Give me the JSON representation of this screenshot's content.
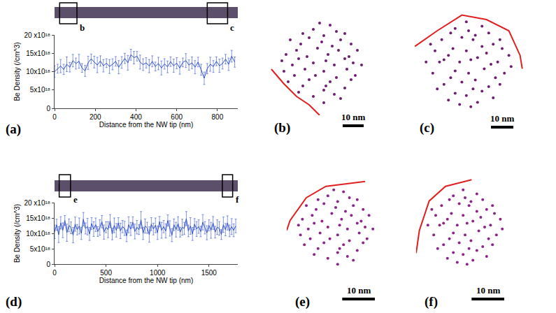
{
  "chart_data": [
    {
      "panel": "(a)",
      "type": "line",
      "color": "#3050d0",
      "grid": false,
      "x": [
        0,
        15,
        30,
        45,
        60,
        75,
        90,
        105,
        120,
        135,
        150,
        165,
        180,
        195,
        210,
        225,
        240,
        255,
        270,
        285,
        300,
        315,
        330,
        345,
        360,
        375,
        390,
        405,
        420,
        435,
        450,
        465,
        480,
        495,
        510,
        525,
        540,
        555,
        570,
        585,
        600,
        615,
        630,
        645,
        660,
        675,
        690,
        705,
        720,
        735,
        750,
        765,
        780,
        795,
        810,
        825,
        840,
        855,
        870,
        885
      ],
      "values": [
        1e+19,
        1.08e+19,
        1.15e+19,
        1.06e+19,
        1.2e+19,
        1.12e+19,
        1.3e+19,
        1.22e+19,
        1.28e+19,
        1.1e+19,
        1.02e+19,
        1.24e+19,
        1.35e+19,
        1.26e+19,
        1.18e+19,
        1.29e+19,
        1.16e+19,
        1.23e+19,
        1.14e+19,
        1.2e+19,
        1.28e+19,
        1.12e+19,
        1.25e+19,
        1.36e+19,
        1.24e+19,
        1.46e+19,
        1.38e+19,
        1.42e+19,
        1.26e+19,
        1.19e+19,
        1.24e+19,
        1.15e+19,
        1.28e+19,
        1.14e+19,
        1.22e+19,
        1.1e+19,
        1.21e+19,
        1.13e+19,
        1.27e+19,
        1.16e+19,
        1.23e+19,
        1.1e+19,
        1.25e+19,
        1.3e+19,
        1.18e+19,
        1.24e+19,
        1.12e+19,
        1.26e+19,
        1.05e+19,
        8.2e+18,
        1.08e+19,
        1.2e+19,
        1.14e+19,
        1.28e+19,
        1.16e+19,
        1.22e+19,
        1.34e+19,
        1.2e+19,
        1.42e+19,
        1.26e+19
      ],
      "errors": [
        1.6e+18,
        1.2e+18,
        1.8e+18,
        1.4e+18,
        2e+18,
        1.3e+18,
        1.7e+18,
        1.5e+18,
        1.9e+18,
        1.2e+18,
        1.5e+18,
        1.8e+18,
        1.3e+18,
        1.6e+18,
        2.1e+18,
        1.4e+18,
        1.7e+18,
        1.2e+18,
        1.9e+18,
        1.5e+18,
        1.3e+18,
        1.8e+18,
        1.6e+18,
        1.4e+18,
        2e+18,
        1.5e+18,
        1.7e+18,
        1.3e+18,
        1.9e+18,
        1.6e+18,
        1.4e+18,
        1.8e+18,
        1.5e+18,
        1.2e+18,
        1.7e+18,
        1.9e+18,
        1.4e+18,
        1.6e+18,
        1.3e+18,
        1.8e+18,
        1.5e+18,
        1.7e+18,
        1.2e+18,
        1.9e+18,
        1.4e+18,
        1.6e+18,
        1.8e+18,
        1.3e+18,
        1.5e+18,
        1.7e+18,
        1.4e+18,
        1.9e+18,
        1.6e+18,
        1.2e+18,
        1.8e+18,
        1.5e+18,
        1.3e+18,
        1.7e+18,
        1.6e+18,
        1.4e+18
      ],
      "xlim": [
        0,
        900
      ],
      "xticks": [
        0,
        200,
        400,
        600,
        800
      ],
      "ylim": [
        0,
        2e+19
      ],
      "yticks": [
        0,
        {
          "value": 5e+18,
          "label": "5x10¹⁸"
        },
        {
          "value": 1e+19,
          "label": "10x10¹⁸"
        },
        {
          "value": 1.5e+19,
          "label": "15x10¹⁸"
        },
        {
          "value": 2e+19,
          "label": "20 x10¹⁸"
        }
      ],
      "x_label": "Distance from the NW tip (nm)",
      "y_label": "Be Density (/cm^3)",
      "nanowire": {
        "boxes": [
          {
            "label": "b",
            "from": 25,
            "to": 110
          },
          {
            "label": "c",
            "from": 750,
            "to": 850
          }
        ]
      }
    },
    {
      "panel": "(b)",
      "type": "scatter",
      "color": "#6e1b72",
      "tick_labels": false,
      "x": [
        1,
        -11,
        -4,
        1,
        6,
        9,
        -16,
        -9,
        -6,
        2,
        4,
        11,
        14,
        -18,
        -13,
        -8,
        -3,
        1,
        7,
        12,
        16,
        -19,
        -14,
        -11,
        -4,
        2,
        6,
        11,
        15,
        19,
        -17,
        -12,
        -7,
        -2,
        3,
        8,
        13,
        17,
        -15,
        -10,
        -6,
        0,
        5,
        9,
        14,
        -9,
        -4,
        1,
        7,
        11,
        -1,
        4
      ],
      "y": [
        -19,
        -14,
        -16,
        -13,
        -15,
        -17,
        -9,
        -11,
        -8,
        -11,
        -9,
        -12,
        -8,
        -4,
        -6,
        -3,
        -6,
        -4,
        -7,
        -3,
        -6,
        1,
        -1,
        2,
        0,
        1,
        -1,
        2,
        0,
        -1,
        4,
        6,
        3,
        7,
        4,
        6,
        3,
        6,
        11,
        9,
        12,
        10,
        8,
        11,
        9,
        14,
        16,
        13,
        15,
        14,
        19,
        18
      ],
      "xlim": [
        -25,
        25
      ],
      "ylim": [
        -25,
        25
      ],
      "boundary": {
        "x": [
          -24,
          -18,
          -12,
          -6,
          -1
        ],
        "y": [
          -3,
          -10,
          -16,
          -20,
          -25
        ],
        "color": "#e02020"
      },
      "scale_bar": {
        "length": 10,
        "label": "10 nm"
      }
    },
    {
      "panel": "(c)",
      "type": "scatter",
      "color": "#6e1b72",
      "tick_labels": false,
      "x": [
        -19,
        -14,
        -16,
        -13,
        -15,
        -17,
        -9,
        -11,
        -8,
        -11,
        -9,
        -12,
        -8,
        -4,
        -6,
        -3,
        -6,
        -4,
        -7,
        -3,
        -6,
        1,
        -1,
        2,
        0,
        1,
        -1,
        2,
        0,
        -1,
        4,
        6,
        3,
        7,
        4,
        6,
        3,
        6,
        11,
        9,
        12,
        10,
        8,
        11,
        9,
        14,
        16,
        13,
        15,
        14,
        19,
        18
      ],
      "y": [
        1,
        -11,
        -4,
        1,
        6,
        9,
        -16,
        -9,
        -6,
        2,
        4,
        11,
        14,
        -18,
        -13,
        -8,
        -3,
        1,
        7,
        12,
        16,
        -19,
        -14,
        -11,
        -4,
        2,
        6,
        11,
        15,
        19,
        -17,
        -12,
        -7,
        -2,
        3,
        8,
        13,
        17,
        -15,
        -10,
        -6,
        0,
        5,
        9,
        14,
        -9,
        -4,
        1,
        7,
        11,
        -1,
        4
      ],
      "xlim": [
        -25,
        25
      ],
      "ylim": [
        -25,
        25
      ],
      "boundary": {
        "x": [
          -24,
          -14,
          -3,
          8,
          18,
          23,
          24
        ],
        "y": [
          8,
          15,
          22,
          20,
          15,
          4,
          -2
        ],
        "color": "#e02020"
      },
      "scale_bar": {
        "length": 10,
        "label": "10 nm"
      }
    },
    {
      "panel": "(d)",
      "type": "line",
      "color": "#3050d0",
      "grid": false,
      "x": [
        0,
        20,
        40,
        60,
        80,
        100,
        120,
        140,
        160,
        180,
        200,
        220,
        240,
        260,
        280,
        300,
        320,
        340,
        360,
        380,
        400,
        420,
        440,
        460,
        480,
        500,
        520,
        540,
        560,
        580,
        600,
        620,
        640,
        660,
        680,
        700,
        720,
        740,
        760,
        780,
        800,
        820,
        840,
        860,
        880,
        900,
        920,
        940,
        960,
        980,
        1000,
        1020,
        1040,
        1060,
        1080,
        1100,
        1120,
        1140,
        1160,
        1180,
        1200,
        1220,
        1240,
        1260,
        1280,
        1300,
        1320,
        1340,
        1360,
        1380,
        1400,
        1420,
        1440,
        1460,
        1480,
        1500,
        1520,
        1540,
        1560,
        1580,
        1600,
        1620,
        1640,
        1660,
        1680,
        1700,
        1720,
        1740,
        1760
      ],
      "values": [
        1.05e+19,
        1.28e+19,
        9.6e+18,
        1.34e+19,
        1.1e+19,
        1.42e+19,
        1.02e+19,
        1.26e+19,
        1.18e+19,
        9.4e+18,
        1.3e+19,
        1.12e+19,
        1.24e+19,
        1e+19,
        1.46e+19,
        1.16e+19,
        1.22e+19,
        9.8e+18,
        1.32e+19,
        1.14e+19,
        1.28e+19,
        1.06e+19,
        1.19e+19,
        1.38e+19,
        1.04e+19,
        1.2e+19,
        1.12e+19,
        1.4e+19,
        9.8e+18,
        1.26e+19,
        1.1e+19,
        1.34e+19,
        1.08e+19,
        1.22e+19,
        1.16e+19,
        9.2e+18,
        1.28e+19,
        1.14e+19,
        1.36e+19,
        1.06e+19,
        1.2e+19,
        1.12e+19,
        1.44e+19,
        1e+19,
        1.24e+19,
        1.18e+19,
        9.6e+18,
        1.3e+19,
        1.14e+19,
        1.26e+19,
        1.02e+19,
        1.38e+19,
        1.1e+19,
        1.22e+19,
        1.08e+19,
        1.42e+19,
        1.16e+19,
        9.4e+18,
        1.28e+19,
        1.12e+19,
        1.32e+19,
        1.04e+19,
        1.2e+19,
        1.16e+19,
        1.48e+19,
        1.08e+19,
        1.24e+19,
        9.8e+18,
        1.3e+19,
        1.14e+19,
        1.22e+19,
        1.06e+19,
        1.36e+19,
        1.18e+19,
        1.02e+19,
        1.26e+19,
        1.1e+19,
        1.34e+19,
        1.04e+19,
        1.2e+19,
        1.16e+19,
        9.6e+18,
        1.28e+19,
        1.12e+19,
        1.34e+19,
        1.08e+19,
        1.22e+19,
        1.1e+19,
        1.24e+19
      ],
      "errors": [
        2.2e+18,
        1.8e+18,
        2.6e+18,
        2e+18,
        2.4e+18,
        1.6e+18,
        2.8e+18,
        2.1e+18,
        1.9e+18,
        2.5e+18,
        2.3e+18,
        1.7e+18,
        2.6e+18,
        2e+18,
        2.2e+18,
        1.8e+18,
        2.7e+18,
        2.1e+18,
        1.9e+18,
        2.4e+18,
        2.2e+18,
        1.6e+18,
        2.5e+18,
        2e+18,
        2.3e+18,
        1.8e+18,
        2.6e+18,
        2.1e+18,
        1.9e+18,
        2.4e+18,
        2.2e+18,
        1.7e+18,
        2.5e+18,
        2e+18,
        2.3e+18,
        1.9e+18,
        2.6e+18,
        2.1e+18,
        1.8e+18,
        2.4e+18,
        2.2e+18,
        1.6e+18,
        2.7e+18,
        2e+18,
        2.3e+18,
        1.8e+18,
        2.5e+18,
        2.1e+18,
        1.9e+18,
        2.4e+18,
        2.2e+18,
        1.7e+18,
        2.6e+18,
        2e+18,
        2.3e+18,
        1.8e+18,
        2.5e+18,
        2.1e+18,
        1.9e+18,
        2.4e+18,
        2.2e+18,
        1.6e+18,
        2.6e+18,
        2e+18,
        2.3e+18,
        1.9e+18,
        2.7e+18,
        2.1e+18,
        1.8e+18,
        2.4e+18,
        2.2e+18,
        1.7e+18,
        2.5e+18,
        2e+18,
        2.3e+18,
        1.8e+18,
        2.6e+18,
        2.1e+18,
        1.9e+18,
        2.4e+18,
        2.2e+18,
        1.6e+18,
        2.5e+18,
        2e+18,
        2.3e+18,
        1.9e+18,
        2.6e+18,
        2.1e+18,
        2.2e+18
      ],
      "xlim": [
        0,
        1780
      ],
      "xticks": [
        0,
        500,
        1000,
        1500
      ],
      "ylim": [
        0,
        2e+19
      ],
      "yticks": [
        0,
        {
          "value": 5e+18,
          "label": "5x10¹⁸"
        },
        {
          "value": 1e+19,
          "label": "10x10¹⁸"
        },
        {
          "value": 1.5e+19,
          "label": "15x10¹⁸"
        },
        {
          "value": 2e+19,
          "label": "20 x10¹⁸"
        }
      ],
      "x_label": "Distance from the NW tip (nm)",
      "y_label": "Be Density (/cm^3)",
      "nanowire": {
        "boxes": [
          {
            "label": "e",
            "from": 45,
            "to": 155
          },
          {
            "label": "f",
            "from": 1630,
            "to": 1730
          }
        ]
      }
    },
    {
      "panel": "(e)",
      "type": "scatter",
      "color": "#8a2488",
      "tick_labels": false,
      "x": [
        0.6,
        -6.6,
        -2.4,
        0.6,
        3.6,
        5.4,
        -9.6,
        -5.4,
        -3.6,
        1.2,
        2.4,
        6.6,
        8.4,
        -10.8,
        -7.8,
        -4.8,
        -1.8,
        0.6,
        4.2,
        7.2,
        9.6,
        -11.4,
        -8.4,
        -6.6,
        -2.4,
        1.2,
        3.6,
        6.6,
        9,
        11.4,
        -10.2,
        -7.2,
        -4.2,
        -1.2,
        1.8,
        4.8,
        7.8,
        10.2,
        -9,
        -6,
        -3.6,
        0,
        3,
        5.4,
        8.4,
        -5.4,
        -2.4,
        0.6,
        4.2,
        6.6,
        -0.6,
        2.4
      ],
      "y": [
        -11.4,
        -8.4,
        -9.6,
        -7.8,
        -9,
        -10.2,
        -5.4,
        -6.6,
        -4.8,
        -6.6,
        -5.4,
        -7.2,
        -4.8,
        -2.4,
        -3.6,
        -1.8,
        -3.6,
        -2.4,
        -4.2,
        -1.8,
        -3.6,
        0.6,
        -0.6,
        1.2,
        0,
        0.6,
        -0.6,
        1.2,
        0,
        -0.6,
        2.4,
        3.6,
        1.8,
        4.2,
        2.4,
        3.6,
        1.8,
        3.6,
        6.6,
        5.4,
        7.2,
        6,
        4.8,
        6.6,
        5.4,
        8.4,
        9.6,
        7.8,
        9,
        8.4,
        11.4,
        10.8
      ],
      "xlim": [
        -15,
        15
      ],
      "ylim": [
        -15,
        15
      ],
      "boundary": {
        "x": [
          -15,
          -14,
          -9,
          -3,
          9
        ],
        "y": [
          -1,
          2,
          9,
          12.5,
          14
        ],
        "color": "#e02020"
      },
      "scale_bar": {
        "length": 10,
        "label": "10 nm"
      }
    },
    {
      "panel": "(f)",
      "type": "scatter",
      "color": "#8a2488",
      "tick_labels": false,
      "x": [
        -11.4,
        -8.4,
        -9.6,
        -7.8,
        -9,
        -10.2,
        -5.4,
        -6.6,
        -4.8,
        -6.6,
        -5.4,
        -7.2,
        -4.8,
        -2.4,
        -3.6,
        -1.8,
        -3.6,
        -2.4,
        -4.2,
        -1.8,
        -3.6,
        0.6,
        -0.6,
        1.2,
        0,
        0.6,
        -0.6,
        1.2,
        0,
        -0.6,
        2.4,
        3.6,
        1.8,
        4.2,
        2.4,
        3.6,
        1.8,
        3.6,
        6.6,
        5.4,
        7.2,
        6,
        4.8,
        6.6,
        5.4,
        8.4,
        9.6,
        7.8,
        9,
        8.4,
        11.4,
        10.8
      ],
      "y": [
        0.6,
        -6.6,
        -2.4,
        0.6,
        3.6,
        5.4,
        -9.6,
        -5.4,
        -3.6,
        1.2,
        2.4,
        6.6,
        8.4,
        -10.8,
        -7.8,
        -4.8,
        -1.8,
        0.6,
        4.2,
        7.2,
        9.6,
        -11.4,
        -8.4,
        -6.6,
        -2.4,
        1.2,
        3.6,
        6.6,
        9,
        11.4,
        -10.2,
        -7.2,
        -4.2,
        -1.2,
        1.8,
        4.8,
        7.8,
        10.2,
        -9,
        -6,
        -3.6,
        0,
        3,
        5.4,
        8.4,
        -5.4,
        -2.4,
        0.6,
        4.2,
        6.6,
        -0.6,
        2.4
      ],
      "xlim": [
        -15,
        15
      ],
      "ylim": [
        -15,
        15
      ],
      "boundary": {
        "x": [
          -15,
          -14,
          -11,
          -6,
          2
        ],
        "y": [
          -8,
          -1,
          8,
          12.5,
          14.5
        ],
        "color": "#e02020"
      },
      "scale_bar": {
        "length": 10,
        "label": "10 nm"
      }
    }
  ]
}
